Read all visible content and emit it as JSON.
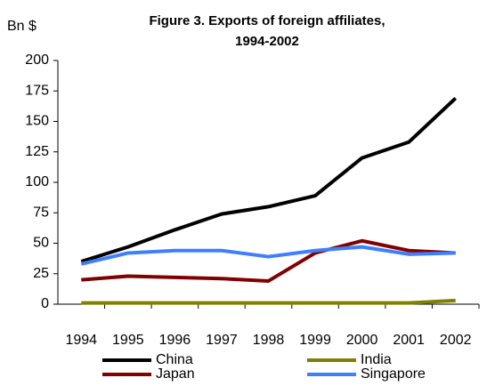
{
  "chart_data": {
    "type": "line",
    "title": [
      "Figure 3. Exports of foreign affiliates,",
      "1994-2002"
    ],
    "y_label": "Bn $",
    "categories": [
      "1994",
      "1995",
      "1996",
      "1997",
      "1998",
      "1999",
      "2000",
      "2001",
      "2002"
    ],
    "series": [
      {
        "name": "China",
        "color": "#000000",
        "values": [
          35,
          47,
          61,
          74,
          80,
          89,
          120,
          133,
          169
        ]
      },
      {
        "name": "India",
        "color": "#808000",
        "values": [
          1,
          1,
          1,
          1,
          1,
          1,
          1,
          1,
          3
        ]
      },
      {
        "name": "Japan",
        "color": "#800000",
        "values": [
          20,
          23,
          22,
          21,
          19,
          42,
          52,
          44,
          42
        ]
      },
      {
        "name": "Singapore",
        "color": "#3f7fff",
        "values": [
          33,
          42,
          44,
          44,
          39,
          44,
          47,
          41,
          42
        ]
      }
    ],
    "ylim": [
      0,
      200
    ],
    "yticks": [
      0,
      25,
      50,
      75,
      100,
      125,
      150,
      175,
      200
    ],
    "grid": false
  }
}
